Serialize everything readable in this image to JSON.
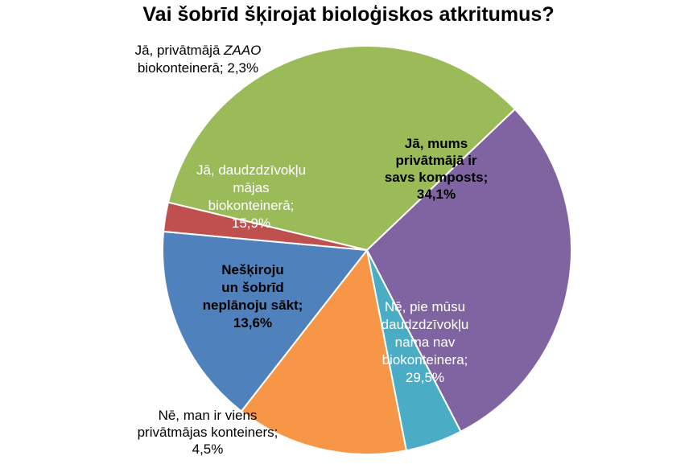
{
  "chart_data": {
    "type": "pie",
    "title": "Vai šobrīd šķirojat bioloģiskos atkritumus?",
    "slices": [
      {
        "label_lines": [
          "Jā, mums",
          "privātmājā ir",
          "savs komposts;",
          "34,1%"
        ],
        "value": 34.1,
        "color": "#9BBB59",
        "label_color": "#000000",
        "label_bold": true
      },
      {
        "label_lines": [
          "Nē, pie mūsu",
          "daudzdzīvokļu",
          "nama nav",
          "biokonteinera;",
          "29,5%"
        ],
        "value": 29.5,
        "color": "#8064A2",
        "label_color": "#ffffff",
        "label_bold": false
      },
      {
        "label_lines": [
          "Nē, man ir viens",
          "privātmājas konteiners;",
          "4,5%"
        ],
        "value": 4.5,
        "color": "#4BACC6",
        "label_color": "#000000",
        "label_bold": false
      },
      {
        "label_lines": [
          "Nešķiroju",
          "un šobrīd",
          "neplānoju sākt;",
          "13,6%"
        ],
        "value": 13.6,
        "color": "#F79646",
        "label_color": "#000000",
        "label_bold": true
      },
      {
        "label_lines": [
          "Jā, daudzdzīvokļu",
          "mājas",
          "biokonteinerā;",
          "15,9%"
        ],
        "value": 15.9,
        "color": "#4F81BD",
        "label_color": "#ffffff",
        "label_bold": false
      },
      {
        "label_lines": [
          "Jā, privātmājā ZAAO",
          "biokonteinerā; 2,3%"
        ],
        "value": 2.3,
        "color": "#C0504D",
        "label_color": "#000000",
        "label_bold": false
      }
    ]
  }
}
